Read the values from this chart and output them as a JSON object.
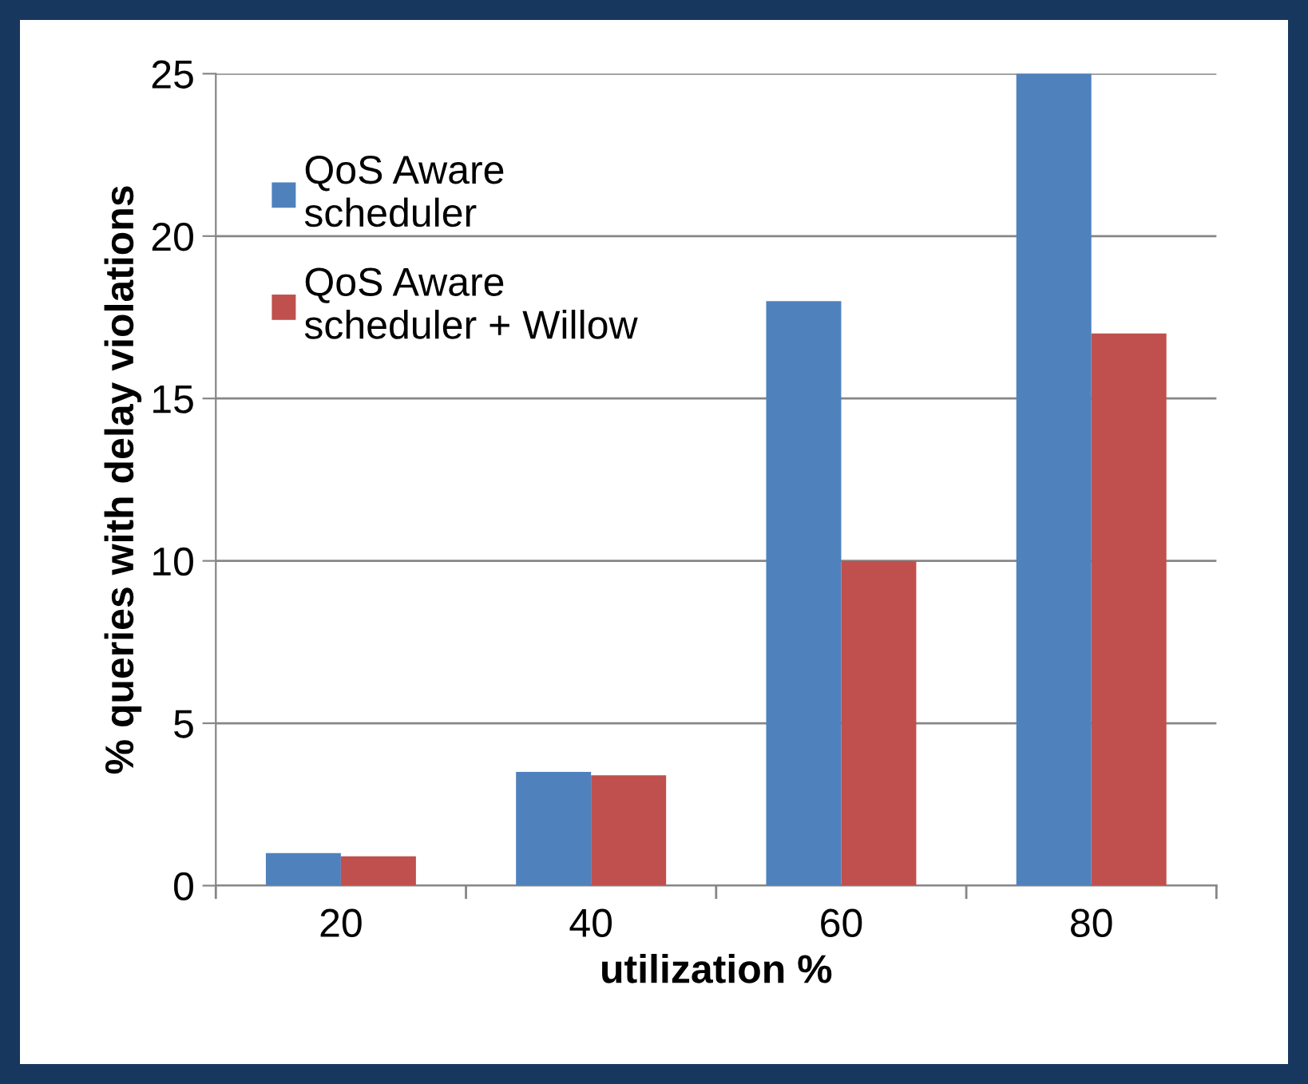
{
  "chart_data": {
    "type": "bar",
    "xlabel": "utilization %",
    "ylabel": "% queries with delay violations",
    "categories": [
      "20",
      "40",
      "60",
      "80"
    ],
    "series": [
      {
        "name": "QoS Aware\nscheduler",
        "color": "#4f81bd",
        "values": [
          1.0,
          3.5,
          18,
          25
        ]
      },
      {
        "name": "QoS Aware\nscheduler + Willow",
        "color": "#c0504d",
        "values": [
          0.9,
          3.4,
          10,
          17
        ]
      }
    ],
    "ylim": [
      0,
      25
    ],
    "yticks": [
      0,
      5,
      10,
      15,
      20,
      25
    ],
    "grid": "y",
    "legend": "top left"
  }
}
